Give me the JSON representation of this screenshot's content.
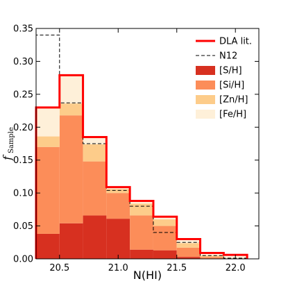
{
  "chart_data": {
    "type": "bar",
    "subtype": "stacked-step-histogram",
    "xlabel": "N(HI)",
    "ylabel_main": "f",
    "ylabel_sub": "Sample",
    "xlim": [
      20.3,
      22.2
    ],
    "ylim": [
      0,
      0.35
    ],
    "x_ticks": [
      "20.5",
      "21.0",
      "21.5",
      "22.0"
    ],
    "x_tick_values": [
      20.5,
      21.0,
      21.5,
      22.0
    ],
    "y_ticks": [
      "0.00",
      "0.05",
      "0.10",
      "0.15",
      "0.20",
      "0.25",
      "0.30",
      "0.35"
    ],
    "y_tick_values": [
      0.0,
      0.05,
      0.1,
      0.15,
      0.2,
      0.25,
      0.3,
      0.35
    ],
    "bin_edges": [
      20.3,
      20.5,
      20.7,
      20.9,
      21.1,
      21.3,
      21.5,
      21.7,
      21.9,
      22.1
    ],
    "series": [
      {
        "name": "[S/H]",
        "color": "#d73020",
        "values": [
          0.038,
          0.054,
          0.066,
          0.061,
          0.014,
          0.013,
          0.003,
          0.0,
          0.0
        ]
      },
      {
        "name": "[Si/H]",
        "color": "#fc8d59",
        "values": [
          0.132,
          0.164,
          0.082,
          0.039,
          0.052,
          0.037,
          0.014,
          0.003,
          0.0
        ]
      },
      {
        "name": "[Zn/H]",
        "color": "#fdcc8a",
        "values": [
          0.016,
          0.018,
          0.026,
          0.006,
          0.018,
          0.01,
          0.007,
          0.002,
          0.0
        ]
      },
      {
        "name": "[Fe/H]",
        "color": "#fef0d9",
        "values": [
          0.044,
          0.043,
          0.011,
          0.003,
          0.004,
          0.004,
          0.006,
          0.002,
          0.004
        ]
      }
    ],
    "outlines": [
      {
        "name": "DLA lit.",
        "color": "#ff0000",
        "style": "solid",
        "values": [
          0.23,
          0.279,
          0.185,
          0.109,
          0.088,
          0.064,
          0.03,
          0.009,
          0.006
        ]
      },
      {
        "name": "N12",
        "color": "#000000",
        "style": "dashed",
        "values": [
          0.34,
          0.237,
          0.175,
          0.104,
          0.08,
          0.04,
          0.025,
          0.005,
          0.001
        ]
      }
    ],
    "legend": {
      "placement": "top-right",
      "entries": [
        "DLA lit.",
        "N12",
        "[S/H]",
        "[Si/H]",
        "[Zn/H]",
        "[Fe/H]"
      ]
    }
  }
}
